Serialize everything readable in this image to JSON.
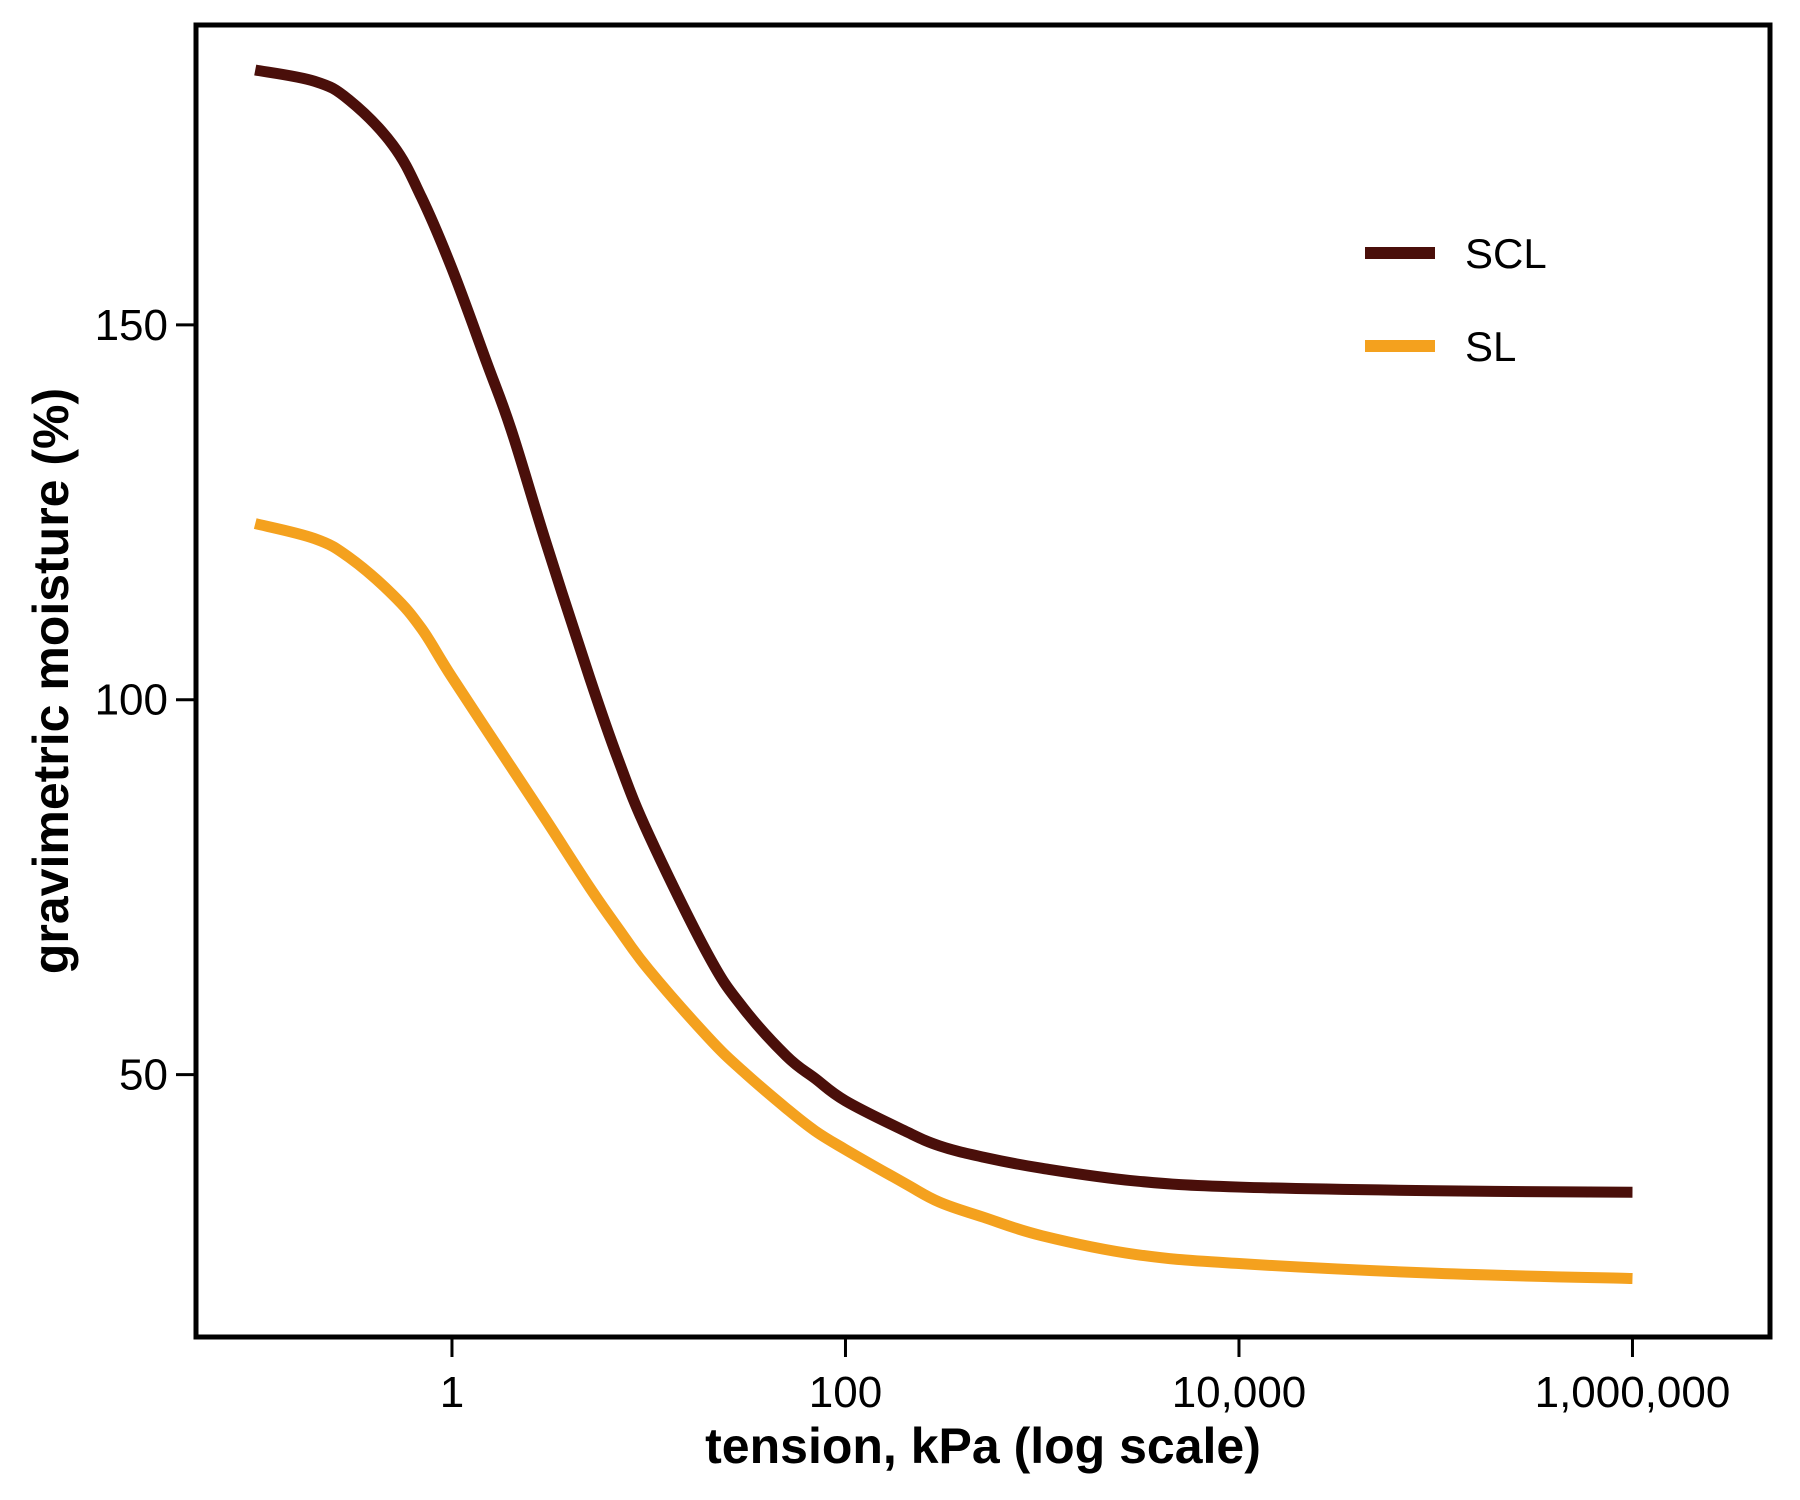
{
  "chart_data": {
    "type": "line",
    "title": "",
    "xlabel": "tension, kPa (log scale)",
    "ylabel": "gravimetric moisture (%)",
    "x_scale": "log10",
    "xlim": [
      0.05,
      5000000
    ],
    "ylim": [
      15,
      190
    ],
    "x_ticks": [
      {
        "value": 1,
        "label": "1"
      },
      {
        "value": 100,
        "label": "100"
      },
      {
        "value": 10000,
        "label": "10,000"
      },
      {
        "value": 1000000,
        "label": "1,000,000"
      }
    ],
    "y_ticks": [
      {
        "value": 50,
        "label": "50"
      },
      {
        "value": 100,
        "label": "100"
      },
      {
        "value": 150,
        "label": "150"
      }
    ],
    "grid": false,
    "legend": {
      "position": "top-right"
    },
    "series": [
      {
        "name": "SCL",
        "color": "#4a0f0a",
        "x": [
          0.1,
          0.2,
          0.3,
          0.5,
          0.7,
          1,
          1.5,
          2,
          3,
          5,
          7,
          10,
          20,
          30,
          50,
          70,
          100,
          200,
          300,
          500,
          1000,
          3000,
          10000,
          100000,
          1000000
        ],
        "y": [
          184,
          182.5,
          180,
          174,
          167,
          157.5,
          145,
          136,
          121,
          103,
          92,
          82,
          66,
          59,
          52.5,
          49.5,
          46.5,
          42.5,
          40.5,
          39,
          37.5,
          35.8,
          35,
          34.5,
          34.3
        ]
      },
      {
        "name": "SL",
        "color": "#f4a11e",
        "x": [
          0.1,
          0.2,
          0.3,
          0.5,
          0.7,
          1,
          2,
          3,
          5,
          7,
          10,
          20,
          30,
          50,
          70,
          100,
          200,
          300,
          500,
          1000,
          3000,
          10000,
          100000,
          1000000
        ],
        "y": [
          123.5,
          121.5,
          119,
          114,
          109.5,
          103,
          91,
          84,
          75,
          69.5,
          64,
          55,
          50.5,
          45.5,
          42.5,
          40,
          35.5,
          33,
          31,
          28.5,
          26,
          24.8,
          23.5,
          22.8
        ]
      }
    ]
  }
}
